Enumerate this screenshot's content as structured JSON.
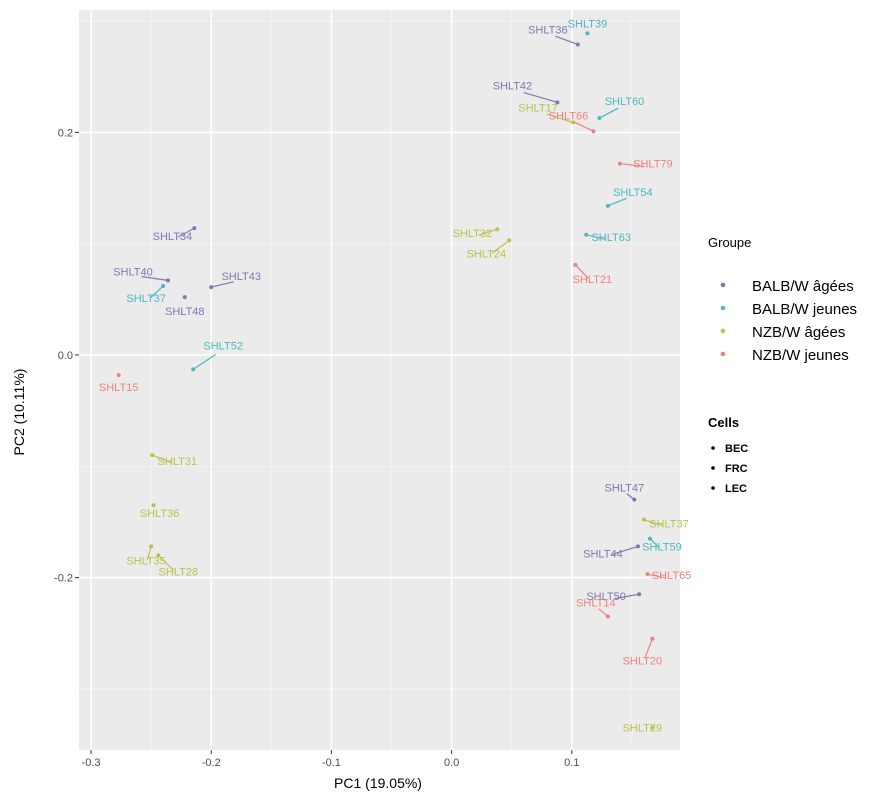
{
  "chart_data": {
    "type": "scatter",
    "title": "",
    "xlabel": "PC1 (19.05%)",
    "ylabel": "PC2 (10.11%)",
    "xlim": [
      -0.31,
      0.19
    ],
    "ylim": [
      -0.355,
      0.31
    ],
    "xticks": [
      -0.3,
      -0.2,
      -0.1,
      0.0,
      0.1
    ],
    "xtick_labels": [
      "-0.3",
      "-0.2",
      "-0.1",
      "0.0",
      "0.1"
    ],
    "yticks": [
      -0.2,
      0.0,
      0.2
    ],
    "ytick_labels": [
      "-0.2",
      "0.0",
      "0.2"
    ],
    "grid": true,
    "background": "#ebebeb",
    "legend_position": "right",
    "colors": {
      "BALB/W âgées": "#7a7ab0",
      "BALB/W jeunes": "#4cb7c0",
      "NZB/W âgées": "#bcc14a",
      "NZB/W jeunes": "#f08080"
    },
    "legend_groupe": {
      "title": "Groupe",
      "items": [
        "BALB/W âgées",
        "BALB/W jeunes",
        "NZB/W âgées",
        "NZB/W jeunes"
      ]
    },
    "legend_cells": {
      "title": "Cells",
      "items": [
        "BEC",
        "FRC",
        "LEC"
      ]
    },
    "points": [
      {
        "label": "SHLT39",
        "group": "BALB/W jeunes",
        "x": 0.113,
        "y": 0.289
      },
      {
        "label": "SHLT36",
        "group": "BALB/W âgées",
        "x": 0.105,
        "y": 0.279
      },
      {
        "label": "SHLT42",
        "group": "BALB/W âgées",
        "x": 0.088,
        "y": 0.227
      },
      {
        "label": "SHLT60",
        "group": "BALB/W jeunes",
        "x": 0.123,
        "y": 0.213
      },
      {
        "label": "SHLT17",
        "group": "NZB/W âgées",
        "x": 0.101,
        "y": 0.209
      },
      {
        "label": "SHLT66",
        "group": "NZB/W jeunes",
        "x": 0.118,
        "y": 0.201
      },
      {
        "label": "SHLT79",
        "group": "NZB/W jeunes",
        "x": 0.14,
        "y": 0.172
      },
      {
        "label": "SHLT54",
        "group": "BALB/W jeunes",
        "x": 0.13,
        "y": 0.134
      },
      {
        "label": "SHLT32",
        "group": "NZB/W âgées",
        "x": 0.038,
        "y": 0.113
      },
      {
        "label": "SHLT63",
        "group": "BALB/W jeunes",
        "x": 0.112,
        "y": 0.108
      },
      {
        "label": "SHLT34",
        "group": "BALB/W âgées",
        "x": -0.214,
        "y": 0.114
      },
      {
        "label": "SHLT24",
        "group": "NZB/W âgées",
        "x": 0.048,
        "y": 0.103
      },
      {
        "label": "SHLT21",
        "group": "NZB/W jeunes",
        "x": 0.103,
        "y": 0.081
      },
      {
        "label": "SHLT40",
        "group": "BALB/W âgées",
        "x": -0.236,
        "y": 0.067
      },
      {
        "label": "SHLT43",
        "group": "BALB/W âgées",
        "x": -0.2,
        "y": 0.061
      },
      {
        "label": "SHLT37",
        "group": "BALB/W jeunes",
        "x": -0.24,
        "y": 0.062
      },
      {
        "label": "SHLT48",
        "group": "BALB/W âgées",
        "x": -0.222,
        "y": 0.052
      },
      {
        "label": "SHLT52",
        "group": "BALB/W jeunes",
        "x": -0.215,
        "y": -0.013
      },
      {
        "label": "SHLT15",
        "group": "NZB/W jeunes",
        "x": -0.277,
        "y": -0.018
      },
      {
        "label": "SHLT31",
        "group": "NZB/W âgées",
        "x": -0.249,
        "y": -0.09
      },
      {
        "label": "SHLT36",
        "group": "NZB/W âgées",
        "x": -0.248,
        "y": -0.135
      },
      {
        "label": "SHLT35",
        "group": "NZB/W âgées",
        "x": -0.25,
        "y": -0.172
      },
      {
        "label": "SHLT28",
        "group": "NZB/W âgées",
        "x": -0.244,
        "y": -0.18
      },
      {
        "label": "SHLT47",
        "group": "BALB/W âgées",
        "x": 0.152,
        "y": -0.13
      },
      {
        "label": "SHLT37",
        "group": "NZB/W âgées",
        "x": 0.16,
        "y": -0.148
      },
      {
        "label": "SHLT44",
        "group": "BALB/W âgées",
        "x": 0.155,
        "y": -0.172
      },
      {
        "label": "SHLT59",
        "group": "BALB/W jeunes",
        "x": 0.165,
        "y": -0.165
      },
      {
        "label": "SHLT50",
        "group": "BALB/W âgées",
        "x": 0.156,
        "y": -0.215
      },
      {
        "label": "SHLT65",
        "group": "NZB/W jeunes",
        "x": 0.163,
        "y": -0.197
      },
      {
        "label": "SHLT14",
        "group": "NZB/W jeunes",
        "x": 0.13,
        "y": -0.235
      },
      {
        "label": "SHLT20",
        "group": "NZB/W jeunes",
        "x": 0.167,
        "y": -0.255
      },
      {
        "label": "SHLT29",
        "group": "NZB/W âgées",
        "x": 0.167,
        "y": -0.335
      }
    ]
  }
}
